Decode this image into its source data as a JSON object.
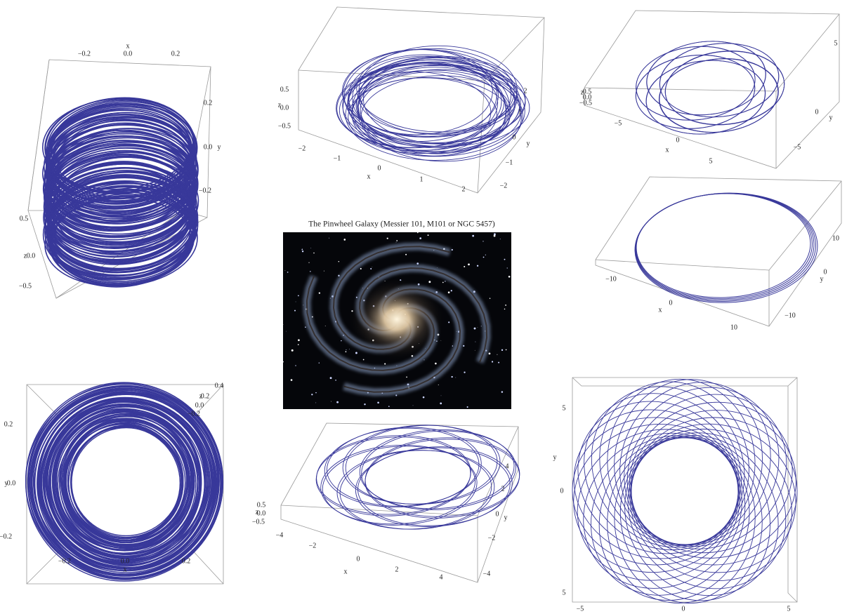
{
  "panels": [
    {
      "x_label": "x",
      "x_ticks": [
        "−0.2",
        "0.0",
        "0.2"
      ],
      "y_label": "y",
      "y_ticks": [
        "0.2",
        "0.0",
        "−0.2"
      ],
      "z_label": "z",
      "z_ticks": [
        "0.5",
        "0.0",
        "−0.5"
      ]
    },
    {
      "x_label": "x",
      "x_ticks": [
        "−2",
        "−1",
        "0",
        "1",
        "2"
      ],
      "y_label": "y",
      "y_ticks": [
        "2",
        "1",
        "0",
        "−1",
        "−2"
      ],
      "z_label": "z",
      "z_ticks": [
        "0.5",
        "0.0",
        "−0.5"
      ]
    },
    {
      "x_label": "x",
      "x_ticks": [
        "−5",
        "0",
        "5"
      ],
      "y_label": "y",
      "y_ticks": [
        "5",
        "0",
        "−5"
      ],
      "z_label": "z",
      "z_ticks": [
        "0.5",
        "0.0",
        "−0.5"
      ]
    },
    {
      "x_label": "x",
      "x_ticks": [
        "−10",
        "0",
        "10"
      ],
      "y_label": "y",
      "y_ticks": [
        "10",
        "0",
        "−10"
      ]
    },
    {
      "x_label": "x",
      "x_ticks": [
        "−0.2",
        "0.0",
        "0.2"
      ],
      "y_label": "y",
      "y_ticks": [
        "0.2",
        "0.0",
        "−0.2"
      ],
      "z_label": "z",
      "z_ticks": [
        "0.4",
        "0.2",
        "0.0",
        "−0.2"
      ]
    },
    {
      "x_label": "x",
      "x_ticks": [
        "−4",
        "−2",
        "0",
        "2",
        "4"
      ],
      "y_label": "y",
      "y_ticks": [
        "4",
        "2",
        "0",
        "−2",
        "−4"
      ],
      "z_label": "z",
      "z_ticks": [
        "0.5",
        "0.0",
        "−0.5"
      ]
    },
    {
      "x_ticks": [
        "−5",
        "0",
        "5"
      ],
      "y_label": "y",
      "y_ticks": [
        "5",
        "0",
        "5"
      ]
    }
  ],
  "galaxy": {
    "caption": "The Pinwheel Galaxy (Messier 101, M101 or NGC 5457)"
  }
}
